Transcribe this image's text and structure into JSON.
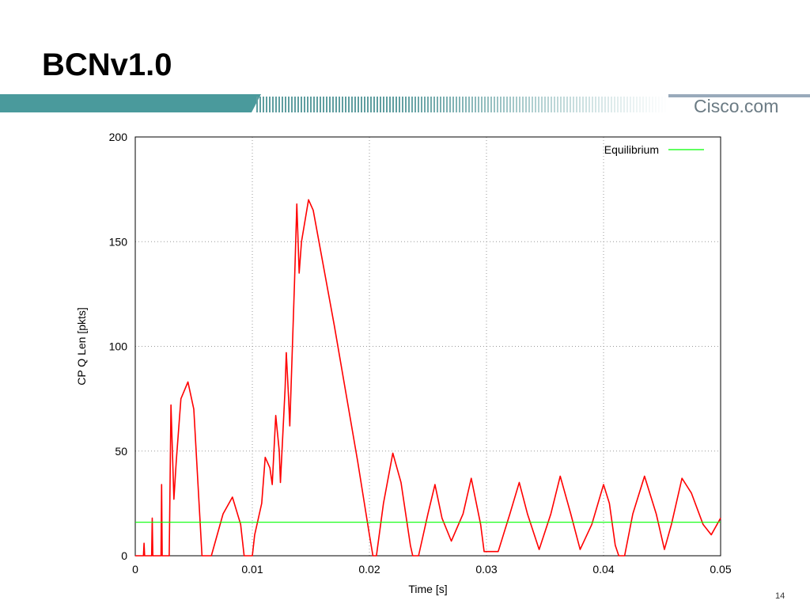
{
  "slide": {
    "title": "BCNv1.0",
    "logo": "Cisco.com",
    "page_number": "14"
  },
  "chart_data": {
    "type": "line",
    "xlabel": "Time [s]",
    "ylabel": "CP Q Len [pkts]",
    "xlim": [
      0,
      0.05
    ],
    "ylim": [
      0,
      200
    ],
    "xticks": [
      0,
      0.01,
      0.02,
      0.03,
      0.04,
      0.05
    ],
    "yticks": [
      0,
      50,
      100,
      150,
      200
    ],
    "grid": true,
    "legend": "upper right",
    "series": [
      {
        "color": "#ff0000",
        "x": [
          0,
          0.0007,
          0.00075,
          0.0008,
          0.0014,
          0.00145,
          0.0015,
          0.0022,
          0.00225,
          0.0023,
          0.0029,
          0.00305,
          0.0033,
          0.0035,
          0.0039,
          0.0045,
          0.005,
          0.0057,
          0.0065,
          0.0075,
          0.0083,
          0.009,
          0.0093,
          0.01,
          0.0102,
          0.0108,
          0.0111,
          0.0115,
          0.0117,
          0.012,
          0.0123,
          0.0124,
          0.0128,
          0.0129,
          0.0131,
          0.0132,
          0.0136,
          0.0138,
          0.014,
          0.0142,
          0.0148,
          0.0152,
          0.017,
          0.019,
          0.02,
          0.0203,
          0.0206,
          0.0212,
          0.022,
          0.0227,
          0.0235,
          0.0237,
          0.0242,
          0.025,
          0.0256,
          0.0262,
          0.027,
          0.028,
          0.0287,
          0.0295,
          0.0298,
          0.031,
          0.032,
          0.0328,
          0.0335,
          0.0345,
          0.0355,
          0.0363,
          0.0372,
          0.038,
          0.039,
          0.04,
          0.0405,
          0.041,
          0.0413,
          0.0418,
          0.0425,
          0.0435,
          0.0445,
          0.0452,
          0.0458,
          0.0467,
          0.0475,
          0.0485,
          0.0492,
          0.05
        ],
        "values": [
          0,
          0,
          6,
          0,
          0,
          18,
          0,
          0,
          34,
          0,
          0,
          72,
          27,
          45,
          75,
          83,
          70,
          0,
          0,
          20,
          28,
          15,
          0,
          0,
          10,
          25,
          47,
          42,
          34,
          67,
          50,
          35,
          80,
          97,
          75,
          62,
          130,
          168,
          135,
          150,
          170,
          165,
          110,
          45,
          10,
          0,
          0,
          25,
          49,
          35,
          5,
          0,
          0,
          20,
          34,
          18,
          7,
          20,
          37,
          15,
          2,
          2,
          20,
          35,
          20,
          3,
          20,
          38,
          20,
          3,
          15,
          34,
          25,
          5,
          0,
          0,
          20,
          38,
          20,
          3,
          15,
          37,
          30,
          15,
          10,
          18
        ]
      },
      {
        "name": "Equilibrium",
        "color": "#00ff00",
        "x": [
          0,
          0.05
        ],
        "values": [
          16,
          16
        ]
      }
    ]
  }
}
